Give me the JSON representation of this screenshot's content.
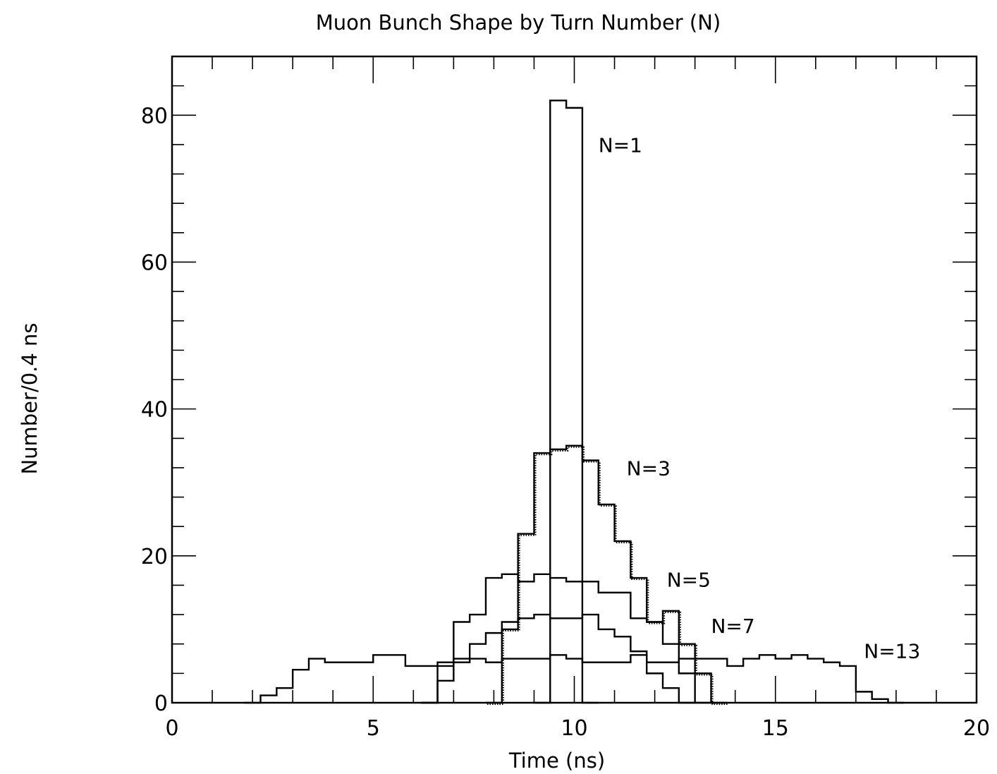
{
  "chart_data": {
    "type": "line",
    "step": true,
    "title": "Muon Bunch Shape by Turn Number (N)",
    "xlabel": "Time (ns)",
    "ylabel": "Number/0.4 ns",
    "xlim": [
      0,
      20
    ],
    "ylim": [
      0,
      88
    ],
    "x_ticks": [
      0,
      5,
      10,
      15,
      20
    ],
    "y_ticks": [
      0,
      20,
      40,
      60,
      80
    ],
    "x_tick_labels": [
      "0",
      "5",
      "10",
      "15",
      "20"
    ],
    "y_tick_labels": [
      "0",
      "20",
      "40",
      "60",
      "80"
    ],
    "bin_width": 0.4,
    "grid": false,
    "series": [
      {
        "label": "N=1",
        "line_style": "solid",
        "label_pos": [
          10.6,
          75
        ],
        "bins": [
          [
            9.0,
            0
          ],
          [
            9.4,
            82
          ],
          [
            9.8,
            81
          ],
          [
            10.2,
            0
          ]
        ]
      },
      {
        "label": "N=3",
        "line_style": "solid-dotted",
        "label_pos": [
          11.3,
          31
        ],
        "bins": [
          [
            7.8,
            0
          ],
          [
            8.2,
            10
          ],
          [
            8.6,
            23
          ],
          [
            9.0,
            34
          ],
          [
            9.4,
            34.5
          ],
          [
            9.8,
            35
          ],
          [
            10.2,
            33
          ],
          [
            10.6,
            27
          ],
          [
            11.0,
            22
          ],
          [
            11.4,
            17
          ],
          [
            11.8,
            11
          ],
          [
            12.2,
            12.5
          ],
          [
            12.6,
            8
          ],
          [
            13.0,
            4
          ],
          [
            13.4,
            0
          ]
        ]
      },
      {
        "label": "N=5",
        "line_style": "solid",
        "label_pos": [
          12.3,
          15.8
        ],
        "bins": [
          [
            6.2,
            0
          ],
          [
            6.6,
            5
          ],
          [
            7.0,
            11
          ],
          [
            7.4,
            12
          ],
          [
            7.8,
            17
          ],
          [
            8.2,
            17.5
          ],
          [
            8.6,
            16.5
          ],
          [
            9.0,
            17.5
          ],
          [
            9.4,
            17
          ],
          [
            9.8,
            16.5
          ],
          [
            10.2,
            16.5
          ],
          [
            10.6,
            15
          ],
          [
            11.0,
            15
          ],
          [
            11.4,
            11.5
          ],
          [
            11.8,
            11
          ],
          [
            12.2,
            8
          ],
          [
            12.6,
            4
          ],
          [
            13.0,
            0
          ]
        ]
      },
      {
        "label": "N=7",
        "line_style": "solid",
        "label_pos": [
          13.4,
          9.5
        ],
        "bins": [
          [
            6.2,
            0
          ],
          [
            6.6,
            3
          ],
          [
            7.0,
            6
          ],
          [
            7.4,
            8
          ],
          [
            7.8,
            9.5
          ],
          [
            8.2,
            11
          ],
          [
            8.6,
            11.5
          ],
          [
            9.0,
            12
          ],
          [
            9.4,
            11.5
          ],
          [
            9.8,
            11.5
          ],
          [
            10.2,
            12
          ],
          [
            10.6,
            10
          ],
          [
            11.0,
            9
          ],
          [
            11.4,
            7
          ],
          [
            11.8,
            4
          ],
          [
            12.2,
            2
          ],
          [
            12.6,
            0
          ]
        ]
      },
      {
        "label": "N=13",
        "line_style": "solid",
        "label_pos": [
          17.2,
          6.1
        ],
        "bins": [
          [
            1.8,
            0
          ],
          [
            2.2,
            1
          ],
          [
            2.6,
            2
          ],
          [
            3.0,
            4.5
          ],
          [
            3.4,
            6
          ],
          [
            3.8,
            5.5
          ],
          [
            4.2,
            5.5
          ],
          [
            4.6,
            5.5
          ],
          [
            5.0,
            6.5
          ],
          [
            5.4,
            6.5
          ],
          [
            5.8,
            5
          ],
          [
            6.2,
            5
          ],
          [
            6.6,
            5.5
          ],
          [
            7.0,
            5.5
          ],
          [
            7.4,
            6
          ],
          [
            7.8,
            5.5
          ],
          [
            8.2,
            6
          ],
          [
            8.6,
            6
          ],
          [
            9.0,
            6
          ],
          [
            9.4,
            6.5
          ],
          [
            9.8,
            6
          ],
          [
            10.2,
            5.5
          ],
          [
            10.6,
            5.5
          ],
          [
            11.0,
            5.5
          ],
          [
            11.4,
            6.5
          ],
          [
            11.8,
            5.5
          ],
          [
            12.2,
            5.5
          ],
          [
            12.6,
            6
          ],
          [
            13.0,
            6
          ],
          [
            13.4,
            6
          ],
          [
            13.8,
            5
          ],
          [
            14.2,
            6
          ],
          [
            14.6,
            6.5
          ],
          [
            15.0,
            6
          ],
          [
            15.4,
            6.5
          ],
          [
            15.8,
            6
          ],
          [
            16.2,
            5.5
          ],
          [
            16.6,
            5
          ],
          [
            17.0,
            1.5
          ],
          [
            17.4,
            0.5
          ],
          [
            17.8,
            0
          ]
        ]
      }
    ]
  }
}
